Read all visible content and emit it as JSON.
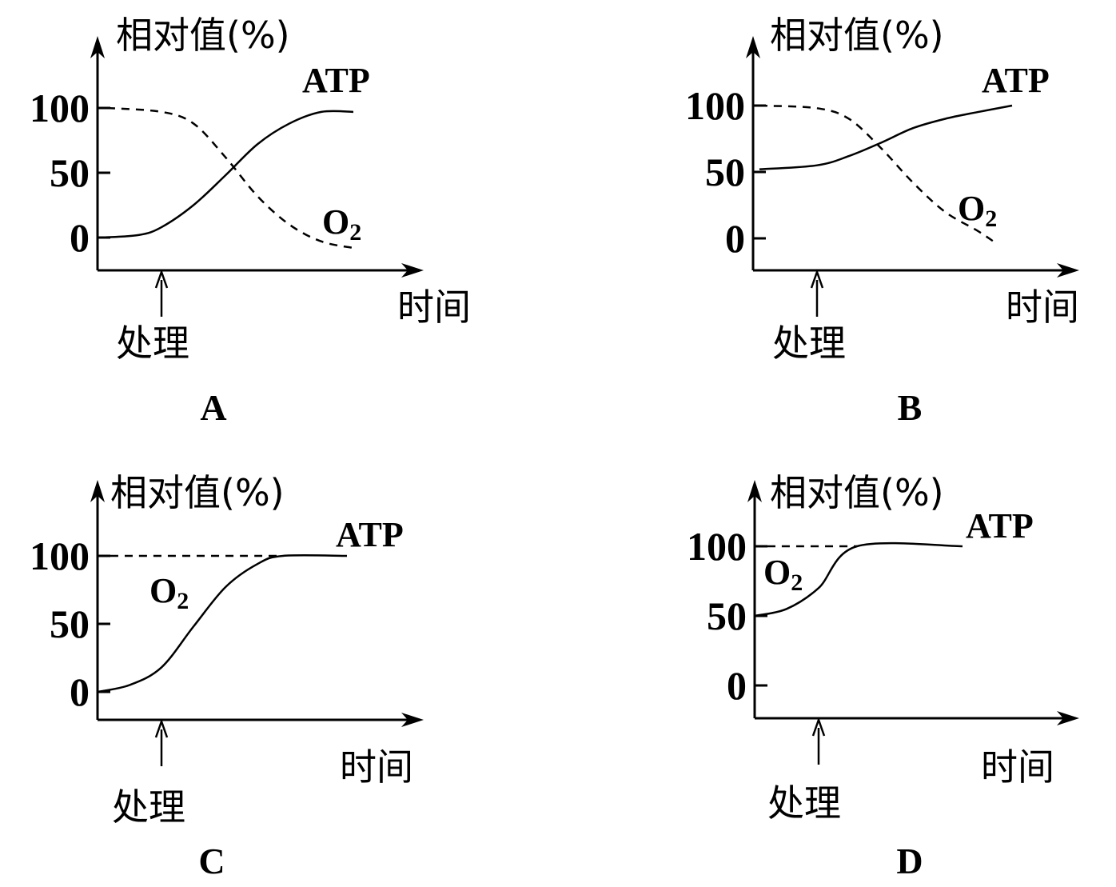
{
  "chart_data": [
    {
      "type": "line",
      "panel_label": "A",
      "ylabel": "相对值(%)",
      "xlabel": "时间",
      "treatment_label": "处理",
      "treatment_time": 2,
      "yticks": [
        "100",
        "50",
        "0"
      ],
      "ytick_values": [
        100,
        50,
        0
      ],
      "series": [
        {
          "name": "ATP",
          "style": "solid",
          "points": [
            [
              0.15,
              0
            ],
            [
              1.3,
              2
            ],
            [
              2,
              8
            ],
            [
              3,
              25
            ],
            [
              4,
              48
            ],
            [
              5,
              72
            ],
            [
              6,
              88
            ],
            [
              7,
              97
            ],
            [
              8,
              97
            ]
          ]
        },
        {
          "name": "O2",
          "style": "dashed",
          "points": [
            [
              0.3,
              100
            ],
            [
              2,
              97
            ],
            [
              3,
              88
            ],
            [
              4,
              62
            ],
            [
              5,
              32
            ],
            [
              6,
              10
            ],
            [
              7,
              -3
            ],
            [
              8,
              -8
            ]
          ]
        }
      ]
    },
    {
      "type": "line",
      "panel_label": "B",
      "ylabel": "相对值(%)",
      "xlabel": "时间",
      "treatment_label": "处理",
      "treatment_time": 2,
      "yticks": [
        "100",
        "50",
        "0"
      ],
      "ytick_values": [
        100,
        50,
        0
      ],
      "series": [
        {
          "name": "ATP",
          "style": "solid",
          "points": [
            [
              0.2,
              52
            ],
            [
              2,
              55
            ],
            [
              3,
              62
            ],
            [
              4,
              72
            ],
            [
              5,
              83
            ],
            [
              6,
              90
            ],
            [
              7,
              95
            ],
            [
              8.1,
              100
            ]
          ]
        },
        {
          "name": "O2",
          "style": "dashed",
          "points": [
            [
              0.2,
              100
            ],
            [
              2,
              98
            ],
            [
              3,
              90
            ],
            [
              4,
              68
            ],
            [
              5,
              42
            ],
            [
              6,
              20
            ],
            [
              7,
              6
            ],
            [
              7.5,
              -2
            ]
          ]
        }
      ]
    },
    {
      "type": "line",
      "panel_label": "C",
      "ylabel": "相对值(%)",
      "xlabel": "时间",
      "treatment_label": "处理",
      "treatment_time": 2,
      "yticks": [
        "100",
        "50",
        "0"
      ],
      "ytick_values": [
        100,
        50,
        0
      ],
      "series": [
        {
          "name": "ATP",
          "style": "solid",
          "points": [
            [
              0,
              0
            ],
            [
              1,
              5
            ],
            [
              2,
              18
            ],
            [
              3,
              48
            ],
            [
              4,
              77
            ],
            [
              5,
              94
            ],
            [
              5.8,
              100
            ],
            [
              7.8,
              100
            ]
          ]
        },
        {
          "name": "O2",
          "style": "dashed",
          "points": [
            [
              0.4,
              100
            ],
            [
              5.8,
              100
            ]
          ]
        }
      ]
    },
    {
      "type": "line",
      "panel_label": "D",
      "ylabel": "相对值(%)",
      "xlabel": "时间",
      "treatment_label": "处理",
      "treatment_time": 2,
      "yticks": [
        "100",
        "50",
        "0"
      ],
      "ytick_values": [
        100,
        50,
        0
      ],
      "series": [
        {
          "name": "ATP",
          "style": "solid",
          "points": [
            [
              0,
              50
            ],
            [
              1,
              55
            ],
            [
              2,
              70
            ],
            [
              3.2,
              100
            ],
            [
              6.5,
              100
            ]
          ]
        },
        {
          "name": "O2",
          "style": "dashed",
          "points": [
            [
              0.4,
              100
            ],
            [
              3.2,
              100
            ]
          ]
        }
      ]
    }
  ]
}
